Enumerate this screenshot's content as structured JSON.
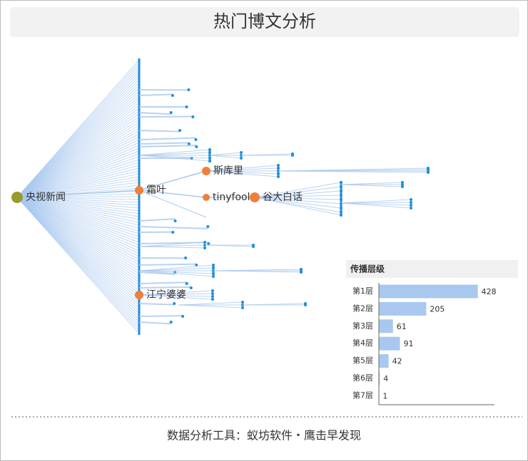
{
  "title": "热门博文分析",
  "network": {
    "nodes": [
      {
        "label": "央视新闻"
      },
      {
        "label": "霜叶"
      },
      {
        "label": "斯库里"
      },
      {
        "label": "tinyfool"
      },
      {
        "label": "谷大白话"
      },
      {
        "label": "江宁婆婆"
      }
    ]
  },
  "chart_data": {
    "type": "bar",
    "orientation": "horizontal",
    "title": "传播层级",
    "categories": [
      "第1层",
      "第2层",
      "第3层",
      "第4层",
      "第5层",
      "第6层",
      "第7层"
    ],
    "values": [
      428,
      205,
      61,
      91,
      42,
      4,
      1
    ],
    "color": "#a9c8ef",
    "xlim": [
      0,
      500
    ]
  },
  "footer": "数据分析工具：蚁坊软件・鹰击早发现"
}
